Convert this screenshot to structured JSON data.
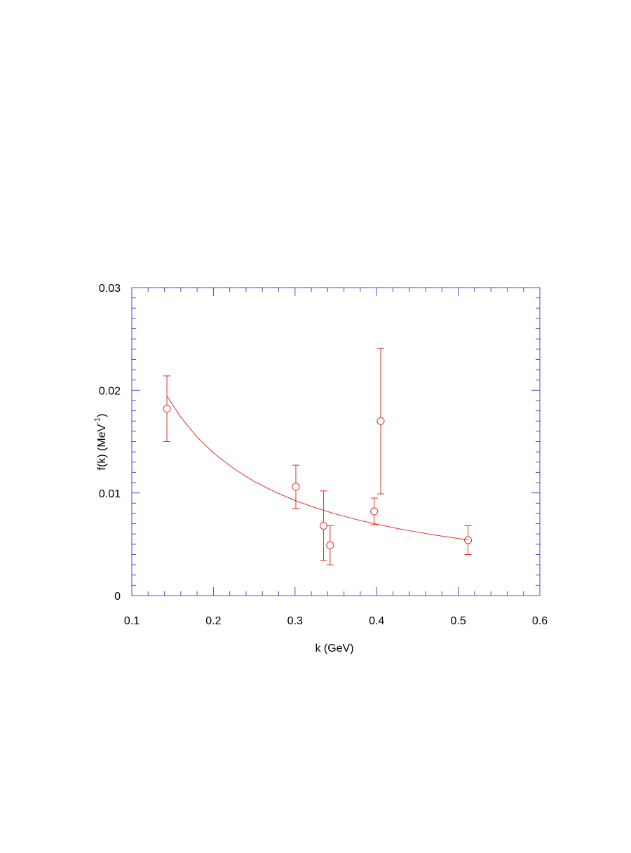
{
  "chart_data": {
    "type": "scatter",
    "xlabel": "k (GeV)",
    "ylabel": "f(k) (MeV",
    "ylabel_sup": "-1",
    "ylabel_end": ")",
    "xlim": [
      0.1,
      0.6
    ],
    "xticks": [
      0.1,
      0.2,
      0.3,
      0.4,
      0.5,
      0.6
    ],
    "xminorticks": [
      0.12,
      0.14,
      0.16,
      0.18,
      0.22,
      0.24,
      0.26,
      0.28,
      0.32,
      0.34,
      0.36,
      0.38,
      0.42,
      0.44,
      0.46,
      0.48,
      0.52,
      0.54,
      0.56,
      0.58
    ],
    "ylim": [
      0,
      0.03
    ],
    "yticks": [
      0,
      0.01,
      0.02,
      0.03
    ],
    "yminorticks": [
      0.001,
      0.002,
      0.003,
      0.004,
      0.005,
      0.006,
      0.007,
      0.008,
      0.009,
      0.011,
      0.012,
      0.013,
      0.014,
      0.015,
      0.016,
      0.017,
      0.018,
      0.019,
      0.021,
      0.022,
      0.023,
      0.024,
      0.025,
      0.026,
      0.027,
      0.028,
      0.029
    ],
    "axis_color": "#4a4acc",
    "series": [
      {
        "kind": "points",
        "color": "#e03030",
        "x": [
          0.143,
          0.301,
          0.335,
          0.343,
          0.397,
          0.405,
          0.512
        ],
        "values": [
          0.0182,
          0.0106,
          0.0068,
          0.0049,
          0.0082,
          0.017,
          0.0054
        ],
        "errors": [
          0.0032,
          0.0021,
          0.0034,
          0.0019,
          0.0013,
          0.0071,
          0.0014
        ]
      },
      {
        "kind": "line",
        "color": "#e03030",
        "x": [
          0.143,
          0.16,
          0.18,
          0.2,
          0.225,
          0.25,
          0.275,
          0.3,
          0.325,
          0.35,
          0.375,
          0.4,
          0.425,
          0.45,
          0.475,
          0.5,
          0.512
        ],
        "values": [
          0.01944,
          0.01738,
          0.01544,
          0.0139,
          0.01236,
          0.01112,
          0.01011,
          0.00927,
          0.00855,
          0.00794,
          0.00741,
          0.00695,
          0.00654,
          0.00618,
          0.00585,
          0.00556,
          0.00543
        ]
      }
    ]
  }
}
